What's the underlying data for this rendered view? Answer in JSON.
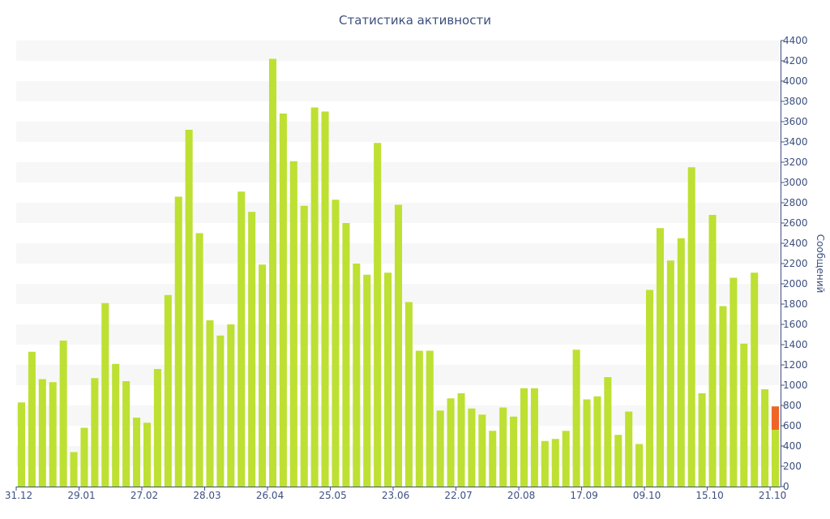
{
  "chart_data": {
    "type": "bar",
    "title": "Статистика активности",
    "ylabel": "Сообщений",
    "xlabel": "",
    "ylim": [
      0,
      4400
    ],
    "y_ticks": [
      0,
      200,
      400,
      600,
      800,
      1000,
      1200,
      1400,
      1600,
      1800,
      2000,
      2200,
      2400,
      2600,
      2800,
      3000,
      3200,
      3400,
      3600,
      3800,
      4000,
      4200,
      4400
    ],
    "y_axis_position": "right",
    "grid": "alternating horizontal bands",
    "colors": {
      "bar": "#bde033",
      "current": "#f06428",
      "band": "#f7f7f7",
      "axis": "#3d4f7f"
    },
    "x_tick_labels": [
      {
        "index": 0,
        "label": "31.12"
      },
      {
        "index": 6,
        "label": "29.01"
      },
      {
        "index": 12,
        "label": "27.02"
      },
      {
        "index": 18,
        "label": "28.03"
      },
      {
        "index": 24,
        "label": "26.04"
      },
      {
        "index": 30,
        "label": "25.05"
      },
      {
        "index": 36,
        "label": "23.06"
      },
      {
        "index": 42,
        "label": "22.07"
      },
      {
        "index": 48,
        "label": "20.08"
      },
      {
        "index": 54,
        "label": "17.09"
      },
      {
        "index": 60,
        "label": "09.10"
      },
      {
        "index": 66,
        "label": "15.10"
      },
      {
        "index": 72,
        "label": "21.10"
      }
    ],
    "values": [
      830,
      1330,
      1060,
      1030,
      1440,
      340,
      580,
      1070,
      1810,
      1210,
      1040,
      680,
      630,
      1160,
      1890,
      2860,
      3520,
      2500,
      1640,
      1490,
      1600,
      2910,
      2710,
      2190,
      4220,
      3680,
      3210,
      2770,
      3740,
      3700,
      2830,
      2600,
      2200,
      2090,
      3390,
      2110,
      2780,
      1820,
      1340,
      1340,
      750,
      870,
      920,
      770,
      710,
      550,
      780,
      690,
      970,
      970,
      450,
      470,
      550,
      1350,
      860,
      890,
      1080,
      510,
      740,
      420,
      1940,
      2550,
      2230,
      2450,
      3150,
      920,
      2680,
      1780,
      2060,
      1410,
      2110,
      960,
      790
    ],
    "current_period": {
      "index": 72,
      "value": 790,
      "highlight_from": 560
    }
  }
}
